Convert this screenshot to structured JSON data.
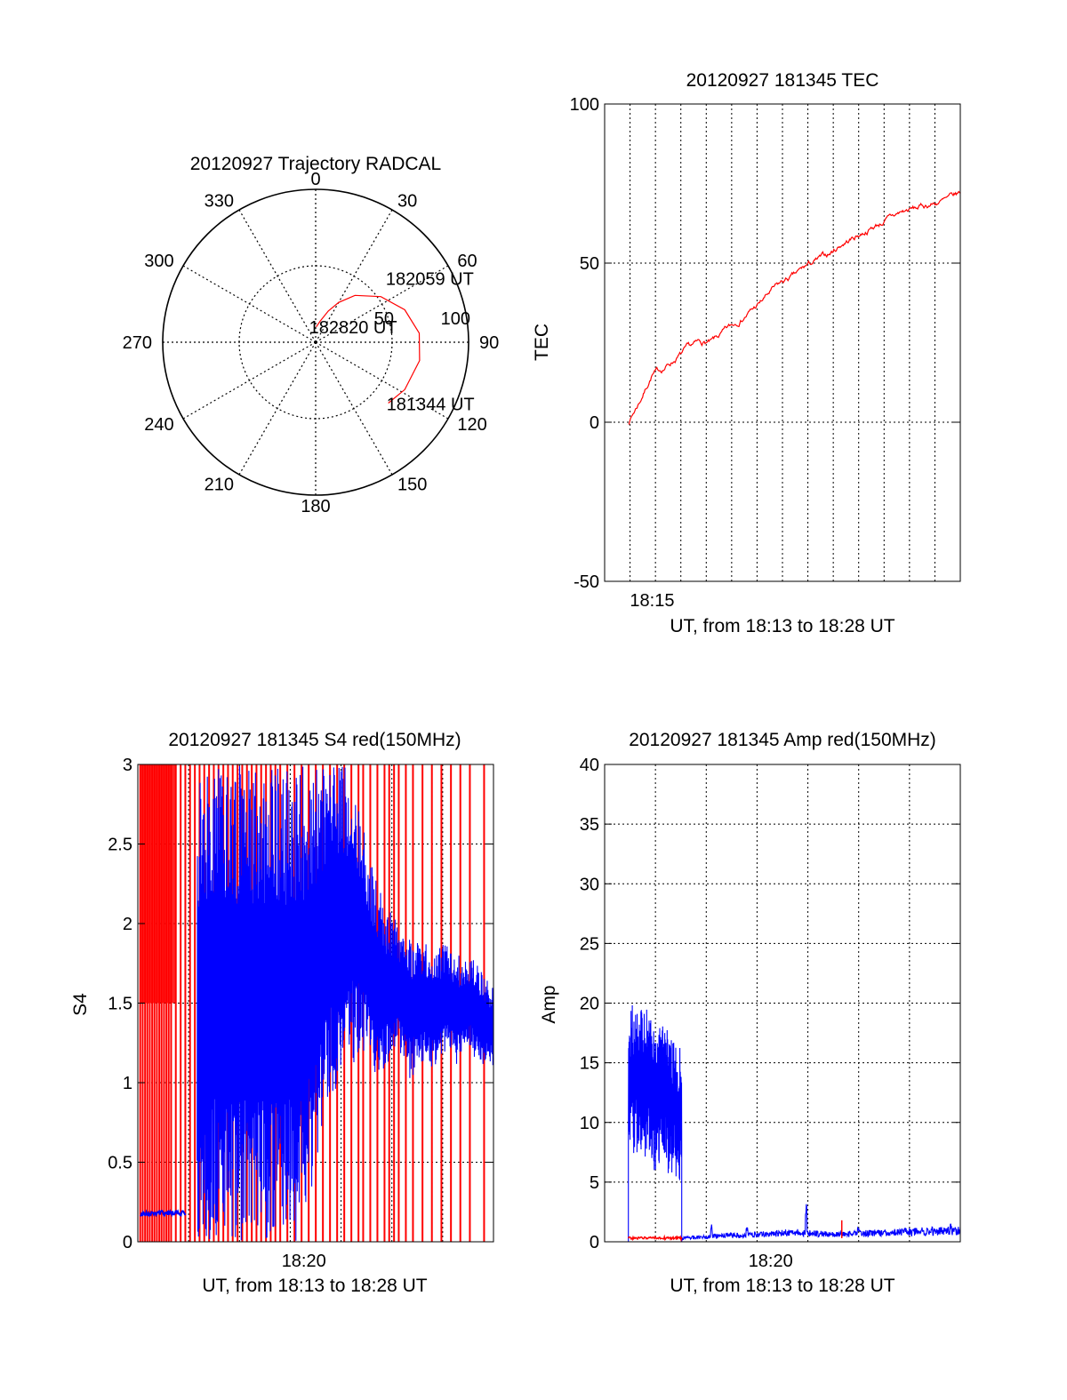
{
  "colors": {
    "red": "#ff0000",
    "blue": "#0000ff",
    "axis": "#000000"
  },
  "chart_data": [
    {
      "id": "trajectory",
      "type": "polar",
      "title": "20120927 Trajectory RADCAL",
      "azimuth_labels": [
        "0",
        "30",
        "60",
        "90",
        "120",
        "150",
        "180",
        "210",
        "240",
        "270",
        "300",
        "330"
      ],
      "radius_labels": [
        "50",
        "100"
      ],
      "elevation_range": [
        0,
        100
      ],
      "grid": true,
      "series": [
        {
          "color": "red",
          "points": [
            [
              2,
              90
            ],
            [
              12,
              86
            ],
            [
              22,
              78
            ],
            [
              30,
              70
            ],
            [
              40,
              60
            ],
            [
              55,
              48
            ],
            [
              70,
              38
            ],
            [
              85,
              32
            ],
            [
              100,
              31
            ],
            [
              118,
              34
            ],
            [
              130,
              38
            ]
          ]
        }
      ],
      "annotations": [
        {
          "text": "182820 UT",
          "azimuth": 2,
          "radius": 90
        },
        {
          "text": "182059 UT",
          "azimuth": 70,
          "radius": 45
        },
        {
          "text": "181344 UT",
          "azimuth": 130,
          "radius": 38
        }
      ]
    },
    {
      "id": "tec",
      "type": "line",
      "title": "20120927 181345 TEC",
      "xlabel": "UT, from 18:13 to 18:28 UT",
      "ylabel": "TEC",
      "xlim": [
        18.2166,
        18.4666
      ],
      "ylim": [
        -50,
        100
      ],
      "yticks": [
        "100",
        "50",
        "0",
        "-50"
      ],
      "xtick_label": "18:15",
      "xtick_value": 18.25,
      "grid": true,
      "series": [
        {
          "color": "red",
          "x": [
            18.2333,
            18.2417,
            18.25,
            18.2583,
            18.2667,
            18.275,
            18.2833,
            18.2917,
            18.3,
            18.3083,
            18.3167,
            18.325,
            18.3333,
            18.3417,
            18.35,
            18.3583,
            18.3667,
            18.375,
            18.3833,
            18.3917,
            18.4,
            18.4083,
            18.4167,
            18.425,
            18.4333,
            18.4417,
            18.45,
            18.4583,
            18.4666
          ],
          "y": [
            0,
            7,
            15,
            17,
            20,
            23,
            25,
            25,
            28,
            31,
            34,
            37,
            41,
            44,
            46,
            49,
            51,
            53,
            56,
            58,
            60,
            62,
            64,
            66,
            67,
            68,
            69,
            70,
            72
          ]
        }
      ]
    },
    {
      "id": "s4",
      "type": "line",
      "title": "20120927 181345 S4 red(150MHz)",
      "xlabel": "UT, from 18:13 to 18:28 UT",
      "ylabel": "S4",
      "xlim": [
        18.2166,
        18.4666
      ],
      "ylim": [
        0,
        3
      ],
      "yticks": [
        "3",
        "2.5",
        "2",
        "1.5",
        "1",
        "0.5",
        "0"
      ],
      "xtick_label": "18:20",
      "xtick_value": 18.3333,
      "grid": true,
      "series": [
        {
          "color": "red",
          "spikes_x": [
            18.2183,
            18.22,
            18.2217,
            18.2233,
            18.225,
            18.2267,
            18.2283,
            18.23,
            18.2317,
            18.2333,
            18.235,
            18.2367,
            18.2383,
            18.24,
            18.2433,
            18.2467,
            18.25,
            18.2533,
            18.2567,
            18.26,
            18.2633,
            18.2667,
            18.27,
            18.2733,
            18.2767,
            18.28,
            18.2833,
            18.2867,
            18.29,
            18.2933,
            18.2967,
            18.3,
            18.3033,
            18.3067,
            18.31,
            18.3133,
            18.3167,
            18.3217,
            18.3267,
            18.3317,
            18.3367,
            18.3417,
            18.3467,
            18.3517,
            18.3567,
            18.3617,
            18.3667,
            18.3717,
            18.375,
            18.38,
            18.385,
            18.39,
            18.3933,
            18.3967,
            18.4,
            18.405,
            18.41,
            18.4167,
            18.4233,
            18.43,
            18.4367,
            18.4433,
            18.45,
            18.46
          ]
        },
        {
          "color": "blue",
          "x": [
            18.2583,
            18.2667,
            18.275,
            18.2833,
            18.2917,
            18.3,
            18.3083,
            18.3167,
            18.325,
            18.3333,
            18.3417,
            18.35,
            18.3583,
            18.3667,
            18.375,
            18.3833,
            18.3917,
            18.4,
            18.4083,
            18.4167,
            18.425,
            18.4333,
            18.4417,
            18.45,
            18.4583,
            18.4666
          ],
          "y_low": [
            0,
            0,
            0,
            0,
            0,
            0,
            0,
            0,
            0,
            0,
            0.5,
            0.8,
            1.0,
            1.1,
            1.2,
            1.0,
            1.1,
            1.2,
            1.0,
            1.1,
            1.1,
            1.2,
            1.1,
            1.2,
            1.1,
            1.1
          ],
          "y_high": [
            3,
            3,
            3,
            3,
            3,
            3,
            3,
            3,
            3,
            3,
            3,
            3,
            3,
            3,
            2.6,
            2.3,
            2.1,
            2.0,
            1.9,
            1.9,
            1.8,
            1.9,
            1.8,
            1.8,
            1.7,
            1.6
          ]
        },
        {
          "color": "blue",
          "x": [
            18.2183,
            18.2333,
            18.25
          ],
          "y": [
            0.17,
            0.18,
            0.18
          ]
        }
      ]
    },
    {
      "id": "amp",
      "type": "line",
      "title": "20120927 181345 Amp red(150MHz)",
      "xlabel": "UT, from 18:13 to 18:28 UT",
      "ylabel": "Amp",
      "xlim": [
        18.2166,
        18.4666
      ],
      "ylim": [
        0,
        40
      ],
      "yticks": [
        "40",
        "35",
        "30",
        "25",
        "20",
        "15",
        "10",
        "5",
        "0"
      ],
      "xtick_label": "18:20",
      "xtick_value": 18.3333,
      "grid": true,
      "series": [
        {
          "color": "blue",
          "x": [
            18.2333,
            18.2417,
            18.25,
            18.2583,
            18.2667,
            18.2708
          ],
          "y_low": [
            7,
            7,
            6,
            6,
            5,
            5
          ],
          "y_high": [
            21,
            20,
            19,
            18,
            17,
            16
          ]
        },
        {
          "color": "blue",
          "x": [
            18.2708,
            18.3,
            18.325,
            18.35,
            18.375,
            18.4,
            18.425,
            18.45,
            18.4666
          ],
          "y": [
            0.3,
            0.5,
            0.6,
            0.8,
            0.6,
            0.7,
            0.8,
            0.9,
            0.9
          ],
          "peaks": [
            [
              18.2917,
              1.5
            ],
            [
              18.3167,
              1.2
            ],
            [
              18.3583,
              3.2
            ],
            [
              18.395,
              1.3
            ],
            [
              18.46,
              1.6
            ]
          ]
        },
        {
          "color": "red",
          "x": [
            18.2333,
            18.2708
          ],
          "y": [
            0.3,
            0.3
          ],
          "peaks": [
            [
              18.3833,
              1.8
            ]
          ]
        }
      ]
    }
  ]
}
